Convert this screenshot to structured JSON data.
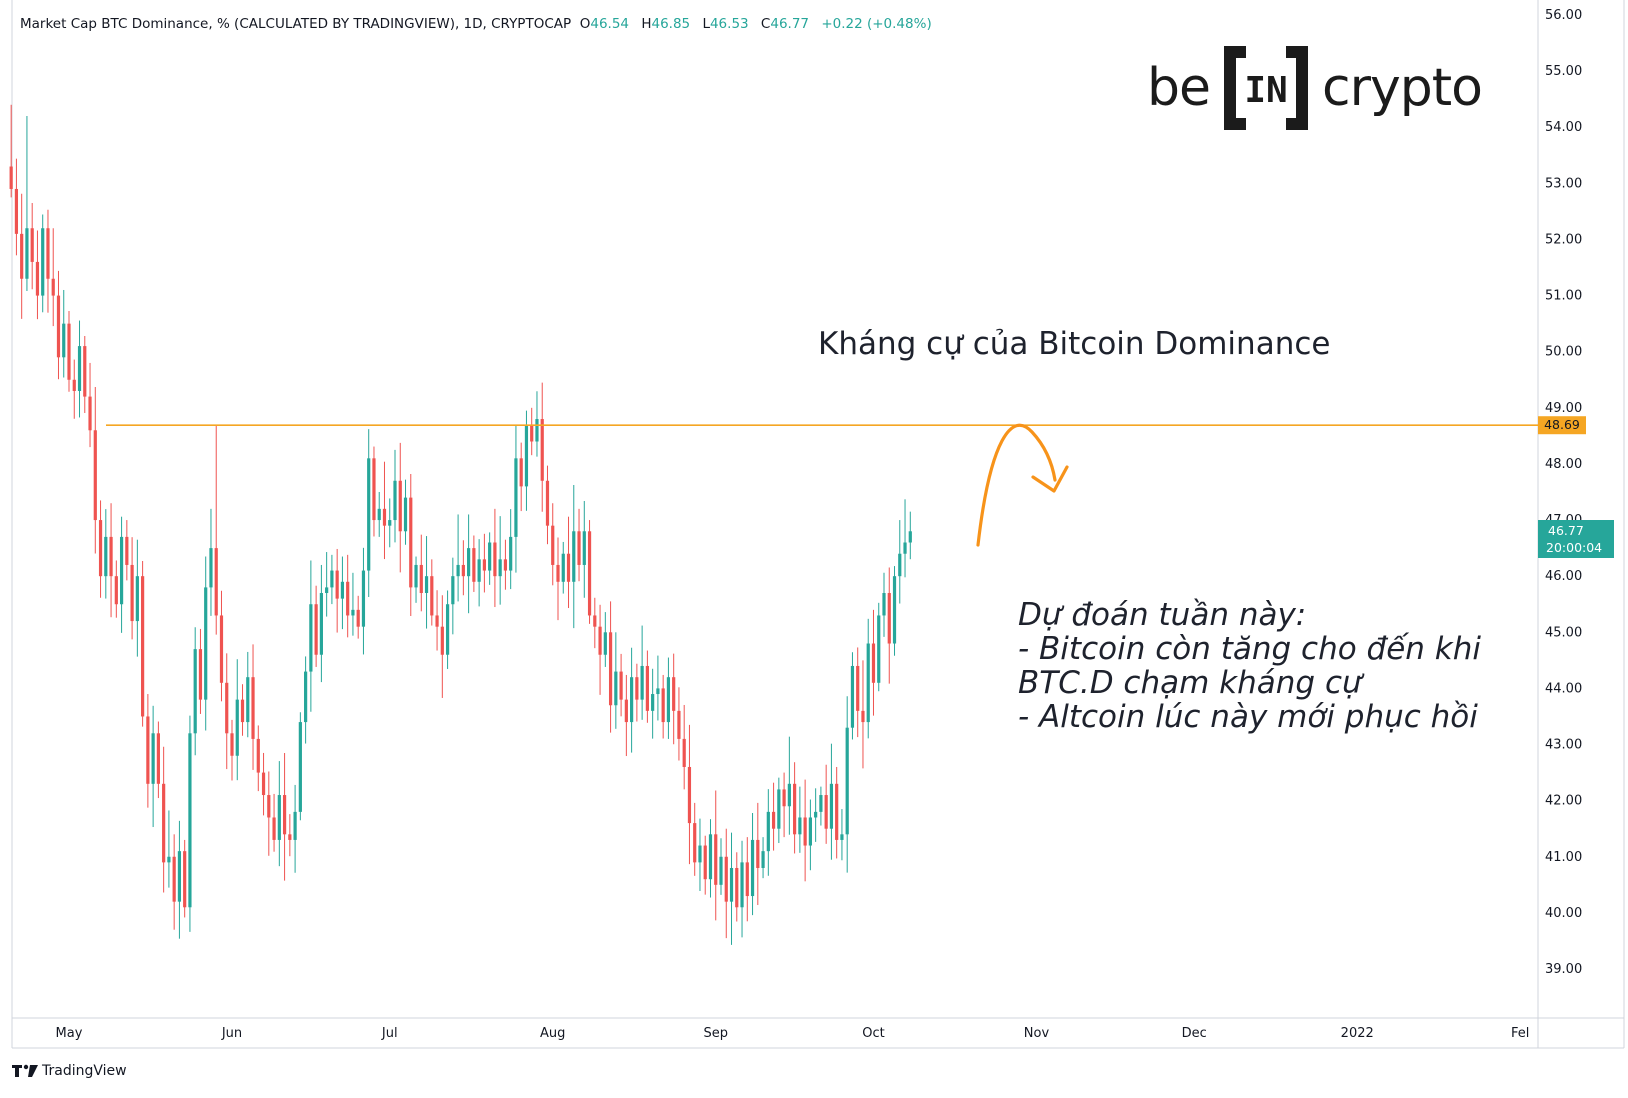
{
  "header": {
    "symbol": "Market Cap BTC Dominance, % (CALCULATED BY TRADINGVIEW), 1D, CRYPTOCAP",
    "open_label": "O",
    "open": "46.54",
    "high_label": "H",
    "high": "46.85",
    "low_label": "L",
    "low": "46.53",
    "close_label": "C",
    "close": "46.77",
    "change": "+0.22 (+0.48%)"
  },
  "logo": {
    "left": "be",
    "middle": "IN",
    "right": "crypto"
  },
  "annotations": {
    "resistance": "Kháng cự của Bitcoin Dominance",
    "prediction_lines": [
      "Dự đoán tuần này:",
      "- Bitcoin còn tăng cho đến khi",
      "BTC.D chạm kháng cự",
      "- Altcoin lúc này mới phục hồi"
    ]
  },
  "price_tag": {
    "value": "46.77",
    "countdown": "20:00:04"
  },
  "resistance_tag": "48.69",
  "footer_brand": "TradingView",
  "colors": {
    "up": "#26a69a",
    "down": "#ef5350",
    "resistance": "#f5a623",
    "arrow": "#f7931a"
  },
  "chart_data": {
    "type": "candlestick",
    "y_range": [
      38.1,
      56.2
    ],
    "y_ticks": [
      "39.00",
      "40.00",
      "41.00",
      "42.00",
      "43.00",
      "44.00",
      "45.00",
      "46.00",
      "47.00",
      "48.00",
      "49.00",
      "50.00",
      "51.00",
      "52.00",
      "53.00",
      "54.00",
      "55.00",
      "56.00"
    ],
    "x_ticks": [
      {
        "label": "May",
        "date": "2021-05-01"
      },
      {
        "label": "Jun",
        "date": "2021-06-01"
      },
      {
        "label": "Jul",
        "date": "2021-07-01"
      },
      {
        "label": "Aug",
        "date": "2021-08-01"
      },
      {
        "label": "Sep",
        "date": "2021-09-01"
      },
      {
        "label": "Oct",
        "date": "2021-10-01"
      },
      {
        "label": "Nov",
        "date": "2021-11-01"
      },
      {
        "label": "Dec",
        "date": "2021-12-01"
      },
      {
        "label": "2022",
        "date": "2022-01-01"
      },
      {
        "label": "Fel",
        "date": "2022-02-01"
      }
    ],
    "first_date": "2021-04-20",
    "resistance_level": 48.69,
    "closes": [
      52.9,
      52.1,
      51.3,
      52.2,
      51.6,
      51.0,
      52.2,
      51.3,
      51.0,
      49.9,
      50.5,
      49.5,
      49.3,
      50.1,
      49.2,
      48.6,
      47.0,
      46.0,
      46.7,
      46.0,
      45.5,
      46.7,
      46.2,
      45.2,
      46.0,
      43.5,
      42.3,
      43.2,
      42.3,
      40.9,
      41.0,
      40.2,
      41.1,
      40.1,
      43.2,
      44.7,
      43.8,
      45.8,
      46.5,
      45.3,
      44.1,
      43.2,
      42.8,
      43.8,
      43.4,
      44.2,
      43.1,
      42.5,
      42.1,
      41.7,
      41.3,
      42.1,
      41.4,
      41.3,
      41.8,
      43.4,
      44.3,
      45.5,
      44.6,
      45.7,
      45.8,
      46.1,
      45.6,
      45.9,
      45.3,
      45.4,
      45.1,
      46.1,
      48.1,
      47.0,
      47.2,
      46.9,
      47.0,
      47.7,
      46.8,
      47.4,
      45.8,
      46.2,
      45.7,
      46.0,
      45.3,
      45.1,
      44.6,
      45.5,
      46.0,
      46.2,
      46.0,
      46.5,
      45.9,
      46.3,
      46.1,
      46.6,
      46.0,
      46.3,
      46.1,
      46.7,
      48.1,
      47.6,
      48.7,
      48.4,
      48.8,
      47.7,
      46.9,
      46.2,
      45.9,
      46.4,
      45.9,
      46.8,
      46.2,
      46.8,
      45.3,
      45.1,
      44.6,
      45.0,
      43.7,
      44.3,
      43.8,
      43.4,
      44.2,
      43.8,
      44.4,
      43.6,
      43.9,
      44.0,
      43.4,
      44.2,
      43.6,
      43.1,
      42.6,
      41.6,
      40.9,
      41.2,
      40.6,
      41.4,
      40.5,
      41.0,
      40.2,
      40.8,
      40.1,
      40.9,
      40.3,
      41.3,
      40.8,
      41.1,
      41.8,
      41.5,
      42.2,
      41.9,
      42.3,
      41.4,
      41.7,
      41.2,
      41.7,
      41.8,
      42.1,
      41.5,
      42.3,
      41.3,
      41.4,
      43.3,
      44.4,
      43.6,
      43.4,
      44.8,
      44.1,
      45.3,
      45.7,
      44.8,
      46.0,
      46.4,
      46.6,
      46.8
    ]
  }
}
